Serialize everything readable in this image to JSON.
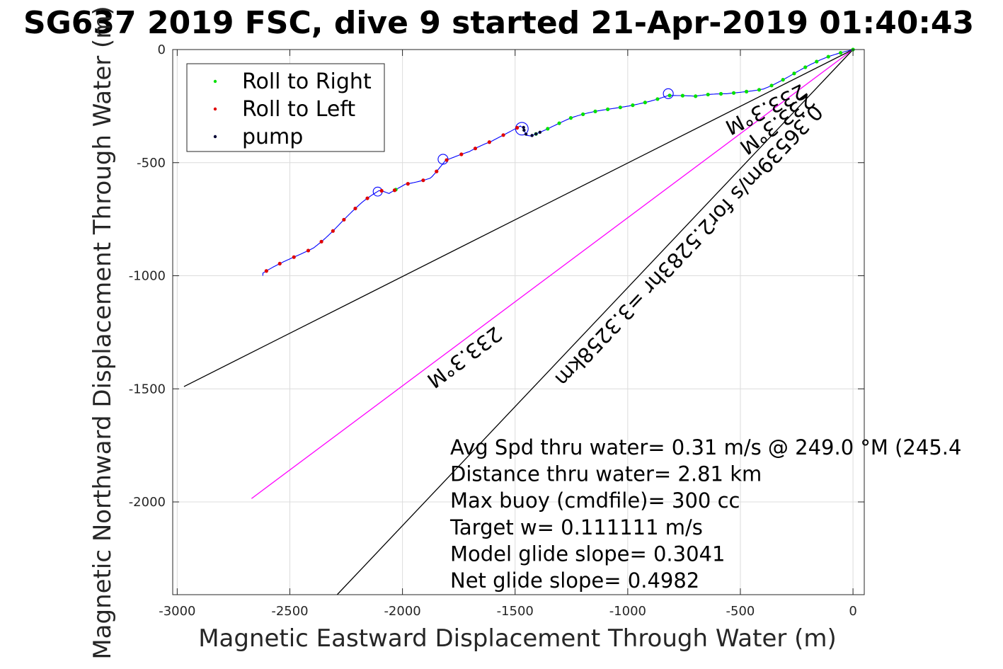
{
  "chart_data": {
    "type": "line",
    "title": "SG637 2019 FSC, dive 9 started 21-Apr-2019 01:40:43",
    "xlabel": "Magnetic Eastward Displacement Through Water (m)",
    "ylabel": "Magnetic Northward Displacement Through Water (m)",
    "xlim": [
      -3020,
      50
    ],
    "ylim": [
      -2410,
      0
    ],
    "xticks": [
      -3000,
      -2500,
      -2000,
      -1500,
      -1000,
      -500,
      0
    ],
    "xtick_labels": [
      "-3000",
      "-2500",
      "-2000",
      "-1500",
      "-1000",
      "-500",
      "0"
    ],
    "yticks": [
      0,
      -500,
      -1000,
      -1500,
      -2000
    ],
    "ytick_labels": [
      "0",
      "-500",
      "-1000",
      "-1500",
      "-2000"
    ],
    "grid": true,
    "legend": {
      "position": "top-left",
      "entries": [
        {
          "label": "Roll to Right",
          "color": "#00e000"
        },
        {
          "label": "Roll to Left",
          "color": "#e00000"
        },
        {
          "label": "pump",
          "color": "#000033"
        }
      ]
    },
    "track": {
      "color": "#0000ff",
      "waypoints": [
        [
          0,
          0
        ],
        [
          -100,
          -38
        ],
        [
          -250,
          -100
        ],
        [
          -400,
          -165
        ],
        [
          -560,
          -200
        ],
        [
          -700,
          -215
        ],
        [
          -820,
          -200
        ],
        [
          -950,
          -230
        ],
        [
          -1100,
          -270
        ],
        [
          -1250,
          -310
        ],
        [
          -1380,
          -355
        ],
        [
          -1440,
          -375
        ],
        [
          -1460,
          -335
        ],
        [
          -1480,
          -330
        ],
        [
          -1510,
          -350
        ],
        [
          -1600,
          -410
        ],
        [
          -1700,
          -460
        ],
        [
          -1810,
          -490
        ],
        [
          -1880,
          -560
        ],
        [
          -1990,
          -590
        ],
        [
          -2060,
          -640
        ],
        [
          -2100,
          -630
        ],
        [
          -2170,
          -680
        ],
        [
          -2270,
          -760
        ],
        [
          -2400,
          -870
        ],
        [
          -2520,
          -940
        ],
        [
          -2620,
          -1000
        ]
      ],
      "loops": [
        {
          "x": -820,
          "y": -195,
          "r": 22
        },
        {
          "x": -1470,
          "y": -350,
          "r": 28
        },
        {
          "x": -1820,
          "y": -485,
          "r": 22
        },
        {
          "x": -2110,
          "y": -628,
          "r": 20
        }
      ],
      "green_segments_x": [
        [
          -1460,
          0
        ],
        [
          -2030,
          -2000
        ],
        [
          -2470,
          -2440
        ]
      ],
      "red_segments_x": [
        [
          -2620,
          -1470
        ]
      ],
      "pump_segments_x": [
        [
          -1470,
          -1380
        ]
      ]
    },
    "bearing_lines": [
      {
        "name": "upper",
        "color": "#000000",
        "x": [
          0,
          -2970
        ],
        "y": [
          0,
          -1490
        ],
        "label": "233.3°M"
      },
      {
        "name": "middle",
        "color": "#ff00ff",
        "x": [
          0,
          -2670
        ],
        "y": [
          0,
          -1985
        ],
        "label": "233.3°M"
      },
      {
        "name": "lower",
        "color": "#000000",
        "x": [
          0,
          -2290
        ],
        "y": [
          0,
          -2410
        ],
        "label": "0.36539m/s for2.5283hr =3.3258km"
      }
    ],
    "annotations": [
      "Avg Spd thru water=  0.31 m/s @ 249.0 °M (245.4",
      "Distance thru water=  2.81 km",
      "Max buoy (cmdfile)= 300 cc",
      "Target w= 0.111111 m/s",
      "Model glide slope= 0.3041",
      "Net glide slope= 0.4982"
    ]
  }
}
